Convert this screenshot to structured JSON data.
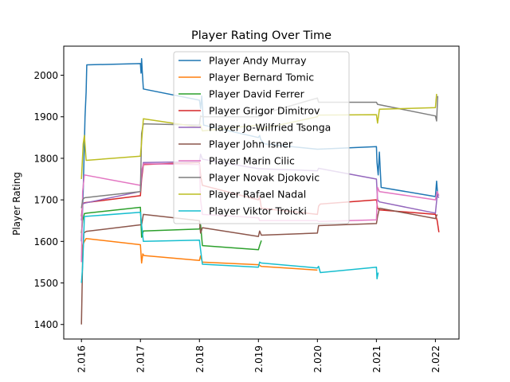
{
  "chart_data": {
    "type": "line",
    "title": "Player Rating Over Time",
    "xlabel": "",
    "ylabel": "Player Rating",
    "xlim": [
      2015.7,
      2022.4
    ],
    "ylim": [
      1365,
      2070
    ],
    "xticks": [
      2016,
      2017,
      2018,
      2019,
      2020,
      2021,
      2022
    ],
    "xtick_labels": [
      "2.016",
      "2.017",
      "2.018",
      "2.019",
      "2.020",
      "2.021",
      "2.022"
    ],
    "yticks": [
      1400,
      1500,
      1600,
      1700,
      1800,
      1900,
      2000
    ],
    "yticklabels": [
      "1400",
      "1500",
      "1600",
      "1700",
      "1800",
      "1900",
      "2000"
    ],
    "grid": false,
    "legend_position": "top-center",
    "series": [
      {
        "name": "Player Andy Murray",
        "color": "#1f77b4",
        "points": [
          [
            2016.0,
            1600
          ],
          [
            2016.03,
            1720
          ],
          [
            2016.06,
            1900
          ],
          [
            2016.08,
            1960
          ],
          [
            2016.09,
            2025
          ],
          [
            2017.0,
            2028
          ],
          [
            2017.01,
            2005
          ],
          [
            2017.02,
            2040
          ],
          [
            2017.03,
            2010
          ],
          [
            2017.05,
            1967
          ],
          [
            2018.0,
            1940
          ],
          [
            2018.02,
            1920
          ],
          [
            2018.04,
            1950
          ],
          [
            2018.07,
            1880
          ],
          [
            2019.0,
            1850
          ],
          [
            2019.02,
            1855
          ],
          [
            2019.04,
            1845
          ],
          [
            2019.1,
            1835
          ],
          [
            2020.0,
            1822
          ],
          [
            2021.0,
            1828
          ],
          [
            2021.01,
            1790
          ],
          [
            2021.03,
            1760
          ],
          [
            2021.05,
            1815
          ],
          [
            2021.08,
            1730
          ],
          [
            2022.0,
            1708
          ],
          [
            2022.02,
            1745
          ],
          [
            2022.04,
            1710
          ]
        ]
      },
      {
        "name": "Player Bernard Tomic",
        "color": "#ff7f0e",
        "points": [
          [
            2016.0,
            1555
          ],
          [
            2016.02,
            1590
          ],
          [
            2016.05,
            1600
          ],
          [
            2016.08,
            1607
          ],
          [
            2017.0,
            1592
          ],
          [
            2017.02,
            1548
          ],
          [
            2017.04,
            1570
          ],
          [
            2017.06,
            1566
          ],
          [
            2018.0,
            1554
          ],
          [
            2018.02,
            1565
          ],
          [
            2018.05,
            1550
          ],
          [
            2019.0,
            1544
          ],
          [
            2019.05,
            1540
          ],
          [
            2020.0,
            1531
          ]
        ]
      },
      {
        "name": "Player David Ferrer",
        "color": "#2ca02c",
        "points": [
          [
            2016.0,
            1620
          ],
          [
            2016.02,
            1650
          ],
          [
            2016.05,
            1667
          ],
          [
            2016.1,
            1668
          ],
          [
            2017.0,
            1682
          ],
          [
            2017.02,
            1610
          ],
          [
            2017.05,
            1625
          ],
          [
            2018.0,
            1630
          ],
          [
            2018.02,
            1640
          ],
          [
            2018.05,
            1590
          ],
          [
            2019.0,
            1580
          ],
          [
            2019.02,
            1590
          ],
          [
            2019.05,
            1602
          ]
        ]
      },
      {
        "name": "Player Grigor Dimitrov",
        "color": "#d62728",
        "points": [
          [
            2016.0,
            1660
          ],
          [
            2016.02,
            1690
          ],
          [
            2016.05,
            1693
          ],
          [
            2017.0,
            1710
          ],
          [
            2017.02,
            1750
          ],
          [
            2017.05,
            1785
          ],
          [
            2018.0,
            1790
          ],
          [
            2018.02,
            1760
          ],
          [
            2018.05,
            1735
          ],
          [
            2019.0,
            1700
          ],
          [
            2019.02,
            1708
          ],
          [
            2019.05,
            1680
          ],
          [
            2020.0,
            1665
          ],
          [
            2020.02,
            1685
          ],
          [
            2020.05,
            1690
          ],
          [
            2021.0,
            1700
          ],
          [
            2021.02,
            1680
          ],
          [
            2021.05,
            1676
          ],
          [
            2022.0,
            1665
          ],
          [
            2022.03,
            1650
          ],
          [
            2022.06,
            1622
          ]
        ]
      },
      {
        "name": "Player Jo-Wilfried Tsonga",
        "color": "#9467bd",
        "points": [
          [
            2016.0,
            1650
          ],
          [
            2016.02,
            1690
          ],
          [
            2016.05,
            1692
          ],
          [
            2017.0,
            1720
          ],
          [
            2017.02,
            1760
          ],
          [
            2017.05,
            1790
          ],
          [
            2018.0,
            1792
          ],
          [
            2018.02,
            1810
          ],
          [
            2018.05,
            1798
          ],
          [
            2019.0,
            1775
          ],
          [
            2020.0,
            1770
          ],
          [
            2020.02,
            1776
          ],
          [
            2021.0,
            1750
          ],
          [
            2021.02,
            1700
          ],
          [
            2021.05,
            1695
          ],
          [
            2022.0,
            1668
          ],
          [
            2022.03,
            1710
          ],
          [
            2022.06,
            1705
          ]
        ]
      },
      {
        "name": "Player John Isner",
        "color": "#8c564b",
        "points": [
          [
            2016.0,
            1400
          ],
          [
            2016.02,
            1560
          ],
          [
            2016.04,
            1620
          ],
          [
            2016.08,
            1624
          ],
          [
            2017.0,
            1640
          ],
          [
            2017.02,
            1640
          ],
          [
            2017.05,
            1665
          ],
          [
            2018.0,
            1650
          ],
          [
            2018.02,
            1620
          ],
          [
            2018.05,
            1633
          ],
          [
            2019.0,
            1612
          ],
          [
            2019.02,
            1625
          ],
          [
            2019.05,
            1615
          ],
          [
            2020.0,
            1620
          ],
          [
            2020.02,
            1638
          ],
          [
            2021.0,
            1643
          ],
          [
            2021.02,
            1660
          ],
          [
            2021.05,
            1680
          ],
          [
            2022.0,
            1655
          ],
          [
            2022.03,
            1665
          ]
        ]
      },
      {
        "name": "Player Marin Cilic",
        "color": "#e377c2",
        "points": [
          [
            2016.0,
            1550
          ],
          [
            2016.02,
            1720
          ],
          [
            2016.05,
            1760
          ],
          [
            2017.0,
            1735
          ],
          [
            2017.02,
            1770
          ],
          [
            2017.05,
            1787
          ],
          [
            2018.0,
            1785
          ],
          [
            2018.02,
            1700
          ],
          [
            2018.05,
            1665
          ],
          [
            2019.0,
            1657
          ],
          [
            2019.02,
            1650
          ],
          [
            2020.0,
            1650
          ],
          [
            2020.02,
            1648
          ],
          [
            2021.0,
            1652
          ],
          [
            2021.02,
            1730
          ],
          [
            2021.05,
            1720
          ],
          [
            2022.0,
            1700
          ],
          [
            2022.03,
            1720
          ],
          [
            2022.06,
            1710
          ]
        ]
      },
      {
        "name": "Player Novak Djokovic",
        "color": "#7f7f7f",
        "points": [
          [
            2016.0,
            1680
          ],
          [
            2016.02,
            1700
          ],
          [
            2016.05,
            1705
          ],
          [
            2017.0,
            1720
          ],
          [
            2017.02,
            1860
          ],
          [
            2017.05,
            1883
          ],
          [
            2018.0,
            1880
          ],
          [
            2018.02,
            1902
          ],
          [
            2018.05,
            1900
          ],
          [
            2019.0,
            1900
          ],
          [
            2019.02,
            1905
          ],
          [
            2020.0,
            1945
          ],
          [
            2020.02,
            1935
          ],
          [
            2021.0,
            1935
          ],
          [
            2021.02,
            1930
          ],
          [
            2022.0,
            1902
          ],
          [
            2022.02,
            1890
          ],
          [
            2022.04,
            1950
          ]
        ]
      },
      {
        "name": "Player Rafael Nadal",
        "color": "#bcbd22",
        "points": [
          [
            2016.0,
            1750
          ],
          [
            2016.03,
            1835
          ],
          [
            2016.05,
            1855
          ],
          [
            2016.08,
            1795
          ],
          [
            2017.0,
            1805
          ],
          [
            2017.02,
            1840
          ],
          [
            2017.05,
            1895
          ],
          [
            2018.0,
            1875
          ],
          [
            2018.02,
            1880
          ],
          [
            2018.05,
            1866
          ],
          [
            2019.0,
            1880
          ],
          [
            2019.02,
            1870
          ],
          [
            2020.0,
            1900
          ],
          [
            2020.02,
            1904
          ],
          [
            2021.0,
            1905
          ],
          [
            2021.02,
            1885
          ],
          [
            2021.05,
            1918
          ],
          [
            2022.0,
            1922
          ],
          [
            2022.02,
            1955
          ]
        ]
      },
      {
        "name": "Player Viktor Troicki",
        "color": "#17becf",
        "points": [
          [
            2016.0,
            1500
          ],
          [
            2016.02,
            1540
          ],
          [
            2016.05,
            1660
          ],
          [
            2017.0,
            1670
          ],
          [
            2017.02,
            1640
          ],
          [
            2017.05,
            1600
          ],
          [
            2018.0,
            1603
          ],
          [
            2018.02,
            1580
          ],
          [
            2018.05,
            1545
          ],
          [
            2019.0,
            1538
          ],
          [
            2019.02,
            1550
          ],
          [
            2019.05,
            1548
          ],
          [
            2020.0,
            1536
          ],
          [
            2020.02,
            1540
          ],
          [
            2020.05,
            1525
          ],
          [
            2021.0,
            1538
          ],
          [
            2021.01,
            1510
          ],
          [
            2021.03,
            1525
          ]
        ]
      }
    ]
  }
}
